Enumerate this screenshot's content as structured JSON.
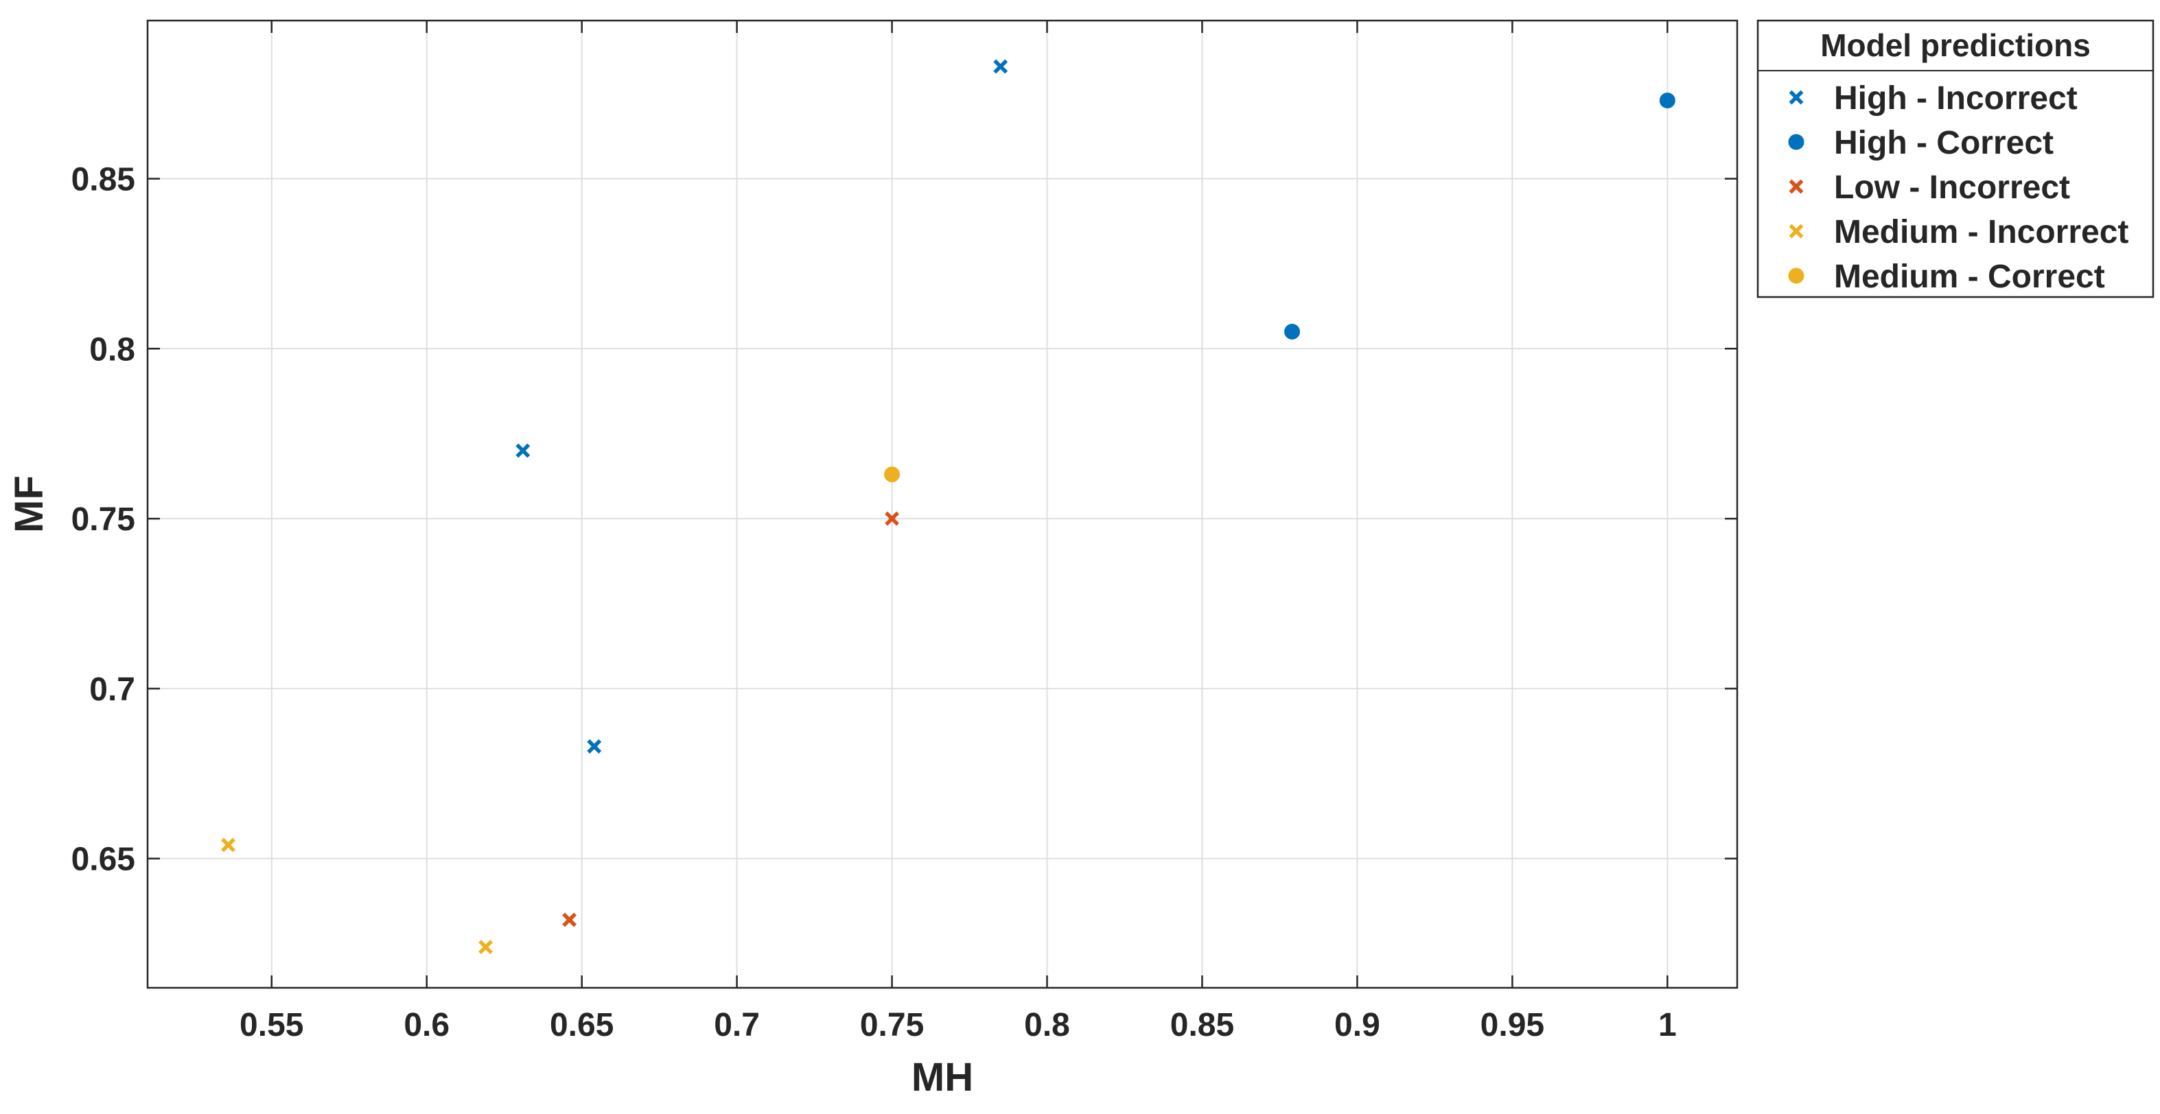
{
  "chart_data": {
    "type": "scatter",
    "title": "",
    "xlabel": "MH",
    "ylabel": "MF",
    "xlim": [
      0.51,
      1.0225
    ],
    "ylim": [
      0.612,
      0.8965
    ],
    "xticks": [
      0.55,
      0.6,
      0.65,
      0.7,
      0.75,
      0.8,
      0.85,
      0.9,
      0.95,
      1
    ],
    "xtick_labels": [
      "0.55",
      "0.6",
      "0.65",
      "0.7",
      "0.75",
      "0.8",
      "0.85",
      "0.9",
      "0.95",
      "1"
    ],
    "yticks": [
      0.65,
      0.7,
      0.75,
      0.8,
      0.85
    ],
    "ytick_labels": [
      "0.65",
      "0.7",
      "0.75",
      "0.8",
      "0.85"
    ],
    "grid": true,
    "legend": {
      "title": "Model predictions",
      "placement": "outside-top-right"
    },
    "series": [
      {
        "name": "High - Incorrect",
        "marker": "x",
        "color": "#0072BD",
        "points": [
          [
            0.631,
            0.77
          ],
          [
            0.654,
            0.683
          ],
          [
            0.785,
            0.883
          ]
        ]
      },
      {
        "name": "High - Correct",
        "marker": "o",
        "color": "#0072BD",
        "points": [
          [
            0.879,
            0.805
          ],
          [
            1.0,
            0.873
          ]
        ]
      },
      {
        "name": "Low - Incorrect",
        "marker": "x",
        "color": "#D95319",
        "points": [
          [
            0.75,
            0.75
          ],
          [
            0.646,
            0.632
          ]
        ]
      },
      {
        "name": "Medium - Incorrect",
        "marker": "x",
        "color": "#EDB120",
        "points": [
          [
            0.536,
            0.654
          ],
          [
            0.619,
            0.624
          ]
        ]
      },
      {
        "name": "Medium - Correct",
        "marker": "o",
        "color": "#EDB120",
        "points": [
          [
            0.75,
            0.763
          ]
        ]
      }
    ]
  }
}
